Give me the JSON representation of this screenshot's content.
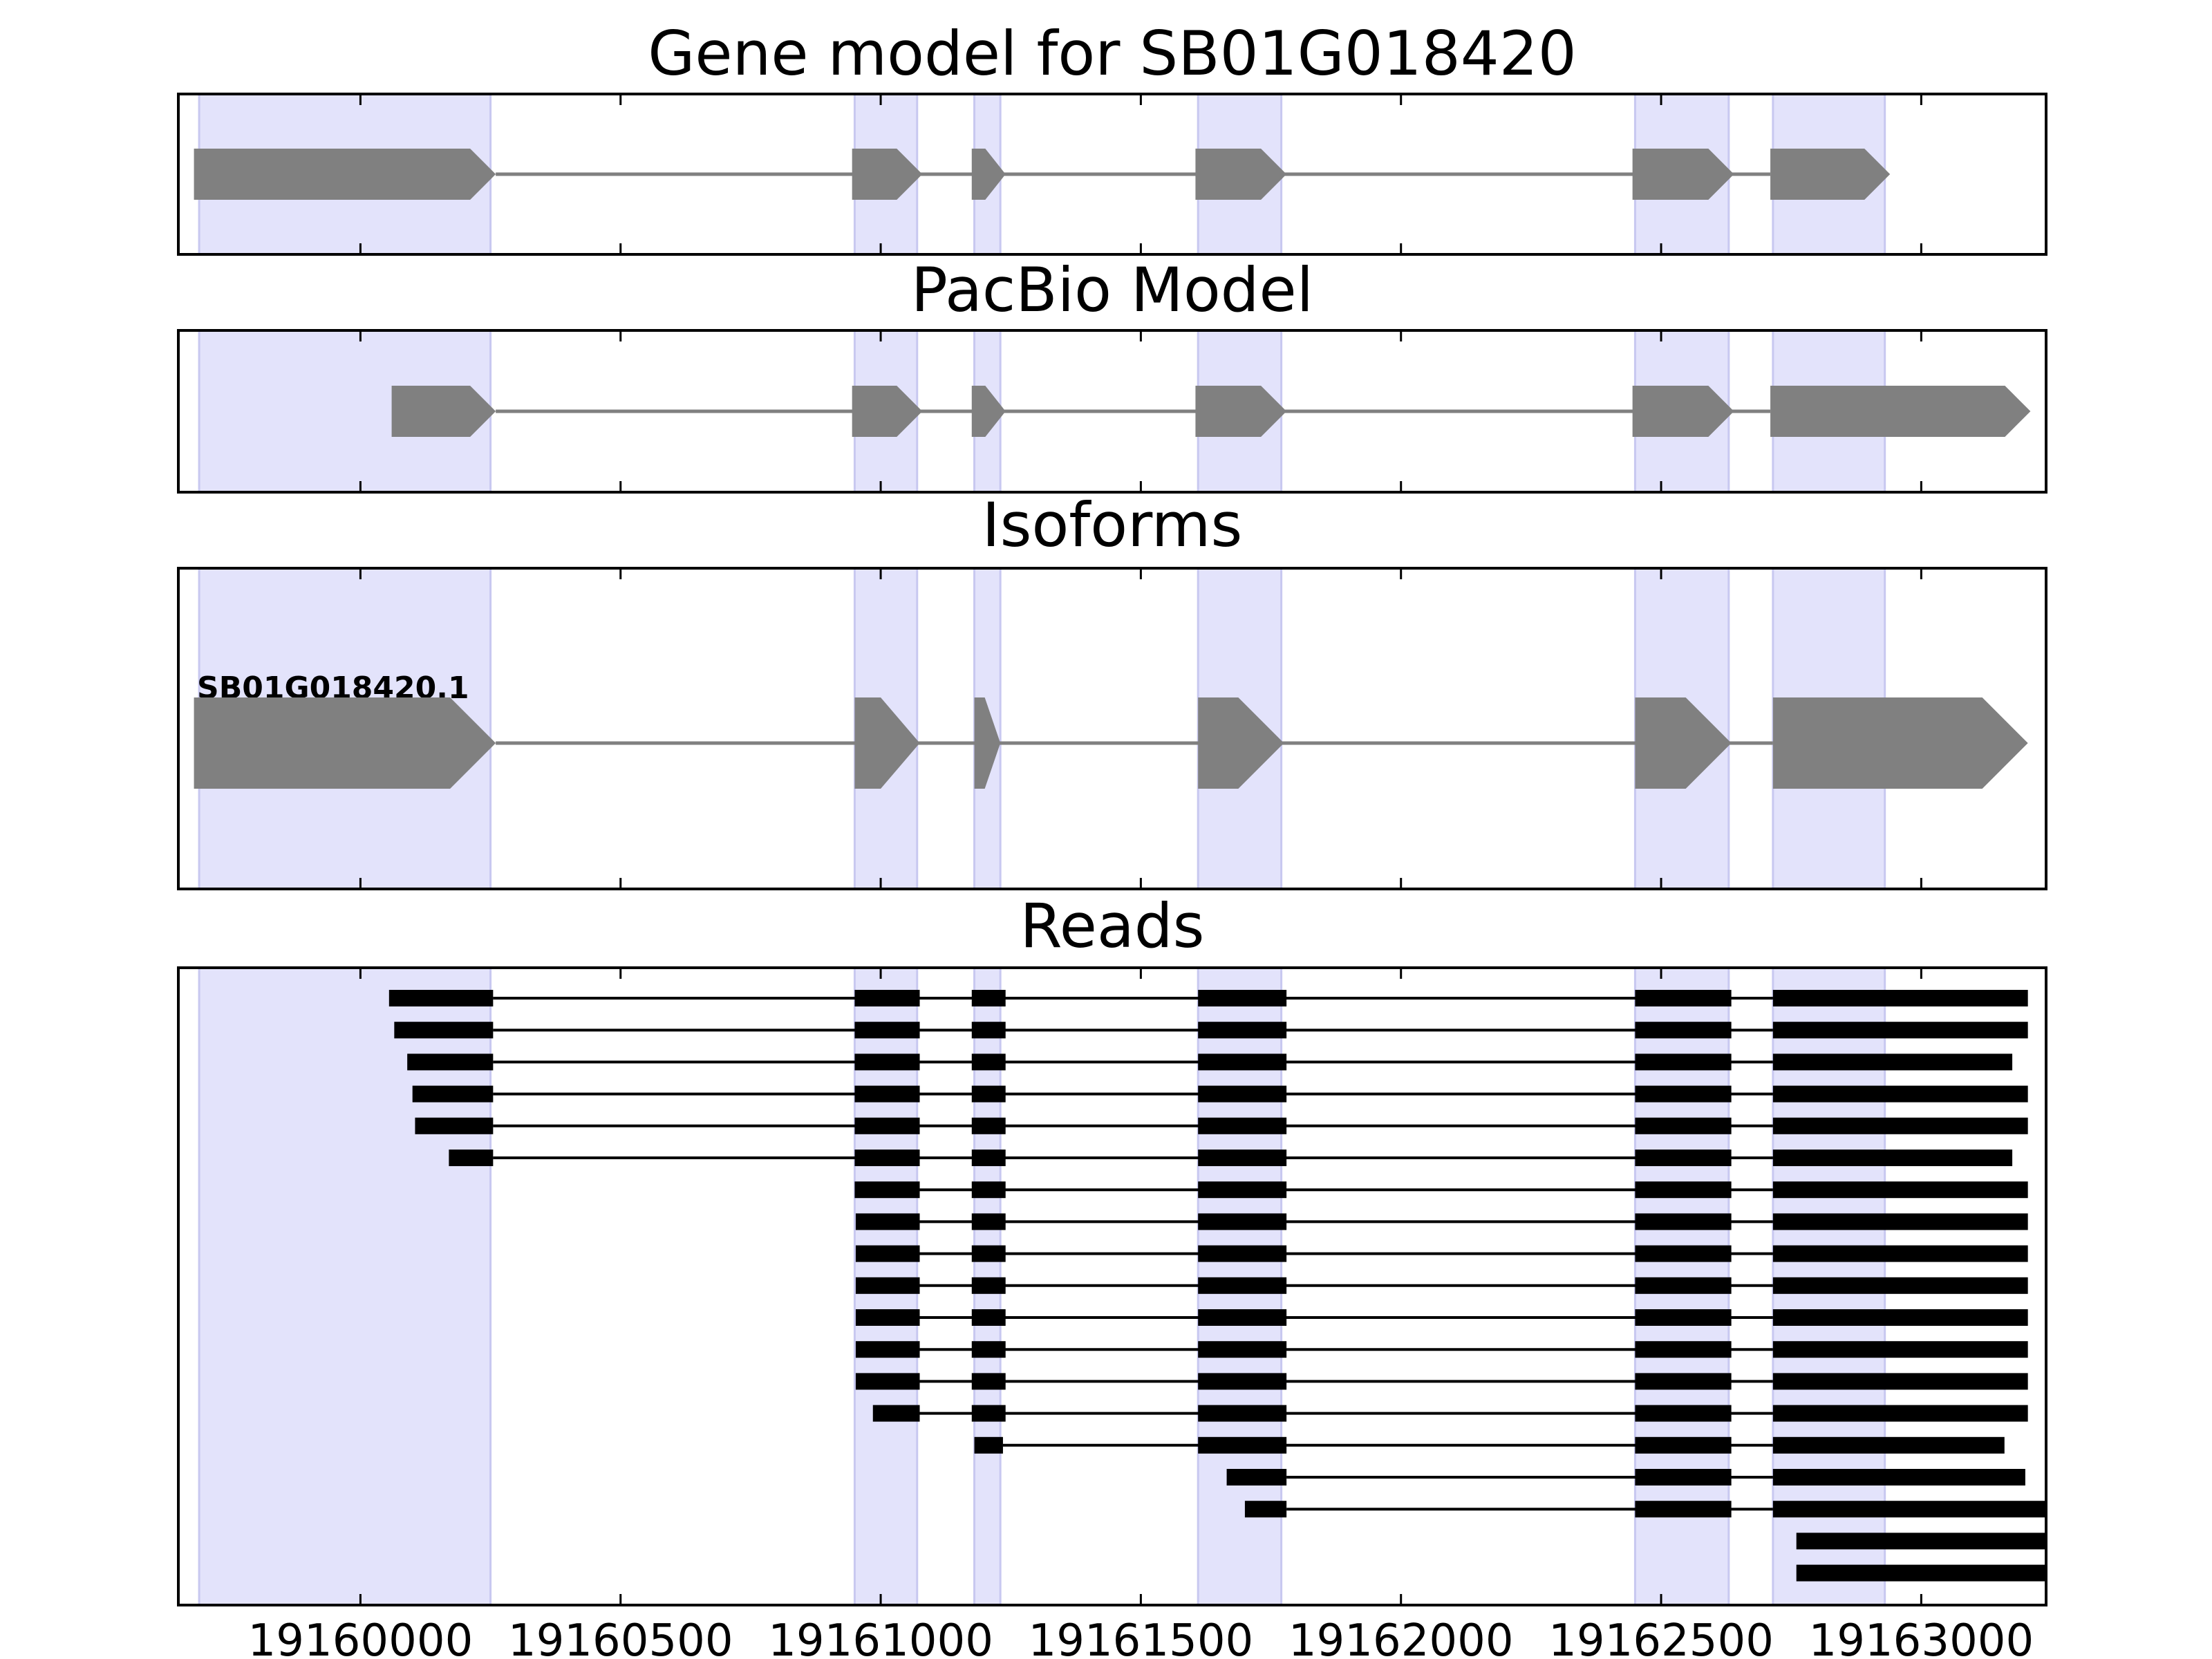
{
  "chart_data": {
    "type": "gene-track",
    "x": {
      "lim": [
        19159650,
        19163240
      ],
      "ticks": [
        19160000,
        19160500,
        19161000,
        19161500,
        19162000,
        19162500,
        19163000
      ],
      "tick_labels": [
        "19160000",
        "19160500",
        "19161000",
        "19161500",
        "19162000",
        "19162500",
        "19163000"
      ]
    },
    "highlight_exons": [
      [
        19159690,
        19160250
      ],
      [
        19160950,
        19161070
      ],
      [
        19161180,
        19161230
      ],
      [
        19161610,
        19161770
      ],
      [
        19162450,
        19162630
      ],
      [
        19162715,
        19162930
      ]
    ],
    "panels": [
      {
        "id": "gene-model",
        "title": "Gene model for SB01G018420",
        "label": "",
        "exons": [
          [
            19159680,
            19160260
          ],
          [
            19160945,
            19161080
          ],
          [
            19161175,
            19161240
          ],
          [
            19161605,
            19161780
          ],
          [
            19162445,
            19162640
          ],
          [
            19162710,
            19162940
          ]
        ]
      },
      {
        "id": "pacbio-model",
        "title": "PacBio Model",
        "label": "",
        "exons": [
          [
            19160060,
            19160260
          ],
          [
            19160945,
            19161080
          ],
          [
            19161175,
            19161240
          ],
          [
            19161605,
            19161780
          ],
          [
            19162445,
            19162640
          ],
          [
            19162710,
            19163210
          ]
        ]
      },
      {
        "id": "isoforms",
        "title": "Isoforms",
        "label": "SB01G018420.1",
        "exons": [
          [
            19159680,
            19160260
          ],
          [
            19160950,
            19161075
          ],
          [
            19161180,
            19161230
          ],
          [
            19161610,
            19161775
          ],
          [
            19162450,
            19162635
          ],
          [
            19162715,
            19163205
          ]
        ]
      }
    ],
    "reads_title": "Reads",
    "reads": [
      [
        [
          19160055,
          19160255
        ],
        [
          19160950,
          19161075
        ],
        [
          19161175,
          19161240
        ],
        [
          19161610,
          19161780
        ],
        [
          19162450,
          19162635
        ],
        [
          19162715,
          19163205
        ]
      ],
      [
        [
          19160065,
          19160255
        ],
        [
          19160950,
          19161075
        ],
        [
          19161175,
          19161240
        ],
        [
          19161610,
          19161780
        ],
        [
          19162450,
          19162635
        ],
        [
          19162715,
          19163205
        ]
      ],
      [
        [
          19160090,
          19160255
        ],
        [
          19160950,
          19161075
        ],
        [
          19161175,
          19161240
        ],
        [
          19161610,
          19161780
        ],
        [
          19162450,
          19162635
        ],
        [
          19162715,
          19163175
        ]
      ],
      [
        [
          19160100,
          19160255
        ],
        [
          19160950,
          19161075
        ],
        [
          19161175,
          19161240
        ],
        [
          19161610,
          19161780
        ],
        [
          19162450,
          19162635
        ],
        [
          19162715,
          19163205
        ]
      ],
      [
        [
          19160105,
          19160255
        ],
        [
          19160950,
          19161075
        ],
        [
          19161175,
          19161240
        ],
        [
          19161610,
          19161780
        ],
        [
          19162450,
          19162635
        ],
        [
          19162715,
          19163205
        ]
      ],
      [
        [
          19160170,
          19160255
        ],
        [
          19160950,
          19161075
        ],
        [
          19161175,
          19161240
        ],
        [
          19161610,
          19161780
        ],
        [
          19162450,
          19162635
        ],
        [
          19162715,
          19163175
        ]
      ],
      [
        [
          19160950,
          19161075
        ],
        [
          19161175,
          19161240
        ],
        [
          19161610,
          19161780
        ],
        [
          19162450,
          19162635
        ],
        [
          19162715,
          19163205
        ]
      ],
      [
        [
          19160952,
          19161075
        ],
        [
          19161175,
          19161240
        ],
        [
          19161610,
          19161780
        ],
        [
          19162450,
          19162635
        ],
        [
          19162715,
          19163205
        ]
      ],
      [
        [
          19160952,
          19161075
        ],
        [
          19161175,
          19161240
        ],
        [
          19161610,
          19161780
        ],
        [
          19162450,
          19162635
        ],
        [
          19162715,
          19163205
        ]
      ],
      [
        [
          19160952,
          19161075
        ],
        [
          19161175,
          19161240
        ],
        [
          19161610,
          19161780
        ],
        [
          19162450,
          19162635
        ],
        [
          19162715,
          19163205
        ]
      ],
      [
        [
          19160952,
          19161075
        ],
        [
          19161175,
          19161240
        ],
        [
          19161610,
          19161780
        ],
        [
          19162450,
          19162635
        ],
        [
          19162715,
          19163205
        ]
      ],
      [
        [
          19160952,
          19161075
        ],
        [
          19161175,
          19161240
        ],
        [
          19161610,
          19161780
        ],
        [
          19162450,
          19162635
        ],
        [
          19162715,
          19163205
        ]
      ],
      [
        [
          19160952,
          19161075
        ],
        [
          19161175,
          19161240
        ],
        [
          19161610,
          19161780
        ],
        [
          19162450,
          19162635
        ],
        [
          19162715,
          19163205
        ]
      ],
      [
        [
          19160985,
          19161075
        ],
        [
          19161175,
          19161240
        ],
        [
          19161610,
          19161780
        ],
        [
          19162450,
          19162635
        ],
        [
          19162715,
          19163205
        ]
      ],
      [
        [
          19161180,
          19161235
        ],
        [
          19161610,
          19161780
        ],
        [
          19162450,
          19162635
        ],
        [
          19162715,
          19163160
        ]
      ],
      [
        [
          19161665,
          19161780
        ],
        [
          19162450,
          19162635
        ],
        [
          19162715,
          19163200
        ]
      ],
      [
        [
          19161700,
          19161780
        ],
        [
          19162450,
          19162635
        ],
        [
          19162715,
          19163240
        ]
      ],
      [
        [
          19162760,
          19163240
        ]
      ],
      [
        [
          19162760,
          19163240
        ]
      ]
    ],
    "colors": {
      "highlight": "#e3e3fb",
      "highlight_edge": "#c8c8f0",
      "exon": "#808080",
      "intron": "#808080",
      "read": "#000000",
      "frame": "#000000"
    }
  }
}
